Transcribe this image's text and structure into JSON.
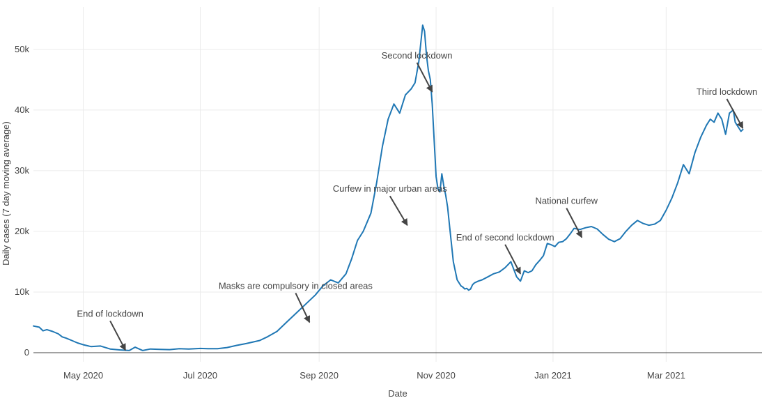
{
  "chart_data": {
    "type": "line",
    "title": "",
    "xlabel": "Date",
    "ylabel": "Daily cases (7 day moving average)",
    "xlim": [
      "2020-04-05",
      "2021-04-20"
    ],
    "ylim": [
      -1500,
      57000
    ],
    "x_ticks": [
      {
        "date": "2020-05-01",
        "label": "May 2020"
      },
      {
        "date": "2020-07-01",
        "label": "Jul 2020"
      },
      {
        "date": "2020-09-01",
        "label": "Sep 2020"
      },
      {
        "date": "2020-11-01",
        "label": "Nov 2020"
      },
      {
        "date": "2021-01-01",
        "label": "Jan 2021"
      },
      {
        "date": "2021-03-01",
        "label": "Mar 2021"
      }
    ],
    "y_ticks": [
      {
        "value": 0,
        "label": "0"
      },
      {
        "value": 10000,
        "label": "10k"
      },
      {
        "value": 20000,
        "label": "20k"
      },
      {
        "value": 30000,
        "label": "30k"
      },
      {
        "value": 40000,
        "label": "40k"
      },
      {
        "value": 50000,
        "label": "50k"
      }
    ],
    "grid": true,
    "legend": "none",
    "series": [
      {
        "color": "#1f77b4",
        "x": [
          "2020-04-05",
          "2020-04-08",
          "2020-04-10",
          "2020-04-12",
          "2020-04-15",
          "2020-04-18",
          "2020-04-20",
          "2020-04-22",
          "2020-04-25",
          "2020-04-28",
          "2020-05-01",
          "2020-05-05",
          "2020-05-10",
          "2020-05-15",
          "2020-05-20",
          "2020-05-25",
          "2020-05-28",
          "2020-06-01",
          "2020-06-05",
          "2020-06-10",
          "2020-06-15",
          "2020-06-20",
          "2020-06-25",
          "2020-07-01",
          "2020-07-05",
          "2020-07-10",
          "2020-07-15",
          "2020-07-20",
          "2020-07-25",
          "2020-08-01",
          "2020-08-05",
          "2020-08-10",
          "2020-08-15",
          "2020-08-20",
          "2020-08-25",
          "2020-08-30",
          "2020-09-03",
          "2020-09-07",
          "2020-09-11",
          "2020-09-15",
          "2020-09-18",
          "2020-09-21",
          "2020-09-24",
          "2020-09-28",
          "2020-10-01",
          "2020-10-04",
          "2020-10-07",
          "2020-10-10",
          "2020-10-13",
          "2020-10-16",
          "2020-10-19",
          "2020-10-21",
          "2020-10-23",
          "2020-10-25",
          "2020-10-26",
          "2020-10-27",
          "2020-10-28",
          "2020-10-29",
          "2020-10-30",
          "2020-10-31",
          "2020-11-01",
          "2020-11-02",
          "2020-11-03",
          "2020-11-04",
          "2020-11-05",
          "2020-11-06",
          "2020-11-07",
          "2020-11-08",
          "2020-11-10",
          "2020-11-12",
          "2020-11-14",
          "2020-11-15",
          "2020-11-16",
          "2020-11-17",
          "2020-11-18",
          "2020-11-19",
          "2020-11-20",
          "2020-11-21",
          "2020-11-23",
          "2020-11-25",
          "2020-11-28",
          "2020-12-01",
          "2020-12-04",
          "2020-12-07",
          "2020-12-10",
          "2020-12-13",
          "2020-12-15",
          "2020-12-17",
          "2020-12-19",
          "2020-12-21",
          "2020-12-23",
          "2020-12-25",
          "2020-12-27",
          "2020-12-29",
          "2020-12-31",
          "2021-01-02",
          "2021-01-04",
          "2021-01-06",
          "2021-01-08",
          "2021-01-10",
          "2021-01-12",
          "2021-01-15",
          "2021-01-18",
          "2021-01-21",
          "2021-01-24",
          "2021-01-27",
          "2021-01-30",
          "2021-02-02",
          "2021-02-05",
          "2021-02-08",
          "2021-02-11",
          "2021-02-14",
          "2021-02-17",
          "2021-02-20",
          "2021-02-23",
          "2021-02-26",
          "2021-03-01",
          "2021-03-04",
          "2021-03-07",
          "2021-03-10",
          "2021-03-13",
          "2021-03-16",
          "2021-03-19",
          "2021-03-22",
          "2021-03-24",
          "2021-03-26",
          "2021-03-28",
          "2021-03-30",
          "2021-04-01",
          "2021-04-03",
          "2021-04-05",
          "2021-04-06",
          "2021-04-07",
          "2021-04-08",
          "2021-04-09",
          "2021-04-10"
        ],
        "y": [
          4400,
          4200,
          3600,
          3800,
          3500,
          3100,
          2600,
          2400,
          2000,
          1600,
          1300,
          1000,
          1100,
          600,
          450,
          350,
          900,
          350,
          600,
          550,
          500,
          650,
          600,
          700,
          650,
          650,
          850,
          1200,
          1500,
          2000,
          2600,
          3500,
          5000,
          6500,
          8000,
          9500,
          11000,
          12000,
          11500,
          13000,
          15500,
          18500,
          20000,
          23000,
          28000,
          34000,
          38500,
          41000,
          39500,
          42500,
          43500,
          44500,
          48000,
          54000,
          53000,
          49000,
          46500,
          45000,
          41000,
          35000,
          29000,
          27000,
          26500,
          29500,
          27500,
          26000,
          24000,
          21000,
          15000,
          12000,
          11000,
          10800,
          10500,
          10600,
          10300,
          10500,
          11200,
          11500,
          11800,
          12000,
          12500,
          13000,
          13300,
          14000,
          15000,
          12500,
          11800,
          13500,
          13200,
          13500,
          14500,
          15200,
          16000,
          18000,
          17800,
          17500,
          18200,
          18300,
          18800,
          19600,
          20500,
          20300,
          20600,
          20800,
          20400,
          19500,
          18700,
          18300,
          18800,
          20000,
          21000,
          21800,
          21300,
          21000,
          21200,
          21800,
          23500,
          25500,
          28000,
          31000,
          29500,
          33000,
          35500,
          37500,
          38500,
          38000,
          39500,
          38500,
          36000,
          39500,
          40000,
          38000,
          37500,
          37000,
          36500,
          36800
        ]
      }
    ],
    "annotations": [
      {
        "text": "End of lockdown",
        "x": "2020-05-23",
        "y": 400
      },
      {
        "text": "Masks are compulsory in closed areas",
        "x": "2020-08-27",
        "y": 5000
      },
      {
        "text": "Curfew in major urban areas",
        "x": "2020-10-17",
        "y": 21000
      },
      {
        "text": "Second lockdown",
        "x": "2020-10-30",
        "y": 43000
      },
      {
        "text": "End of second lockdown",
        "x": "2020-12-15",
        "y": 13000
      },
      {
        "text": "National curfew",
        "x": "2021-01-16",
        "y": 19000
      },
      {
        "text": "Third lockdown",
        "x": "2021-04-10",
        "y": 37000
      }
    ]
  }
}
